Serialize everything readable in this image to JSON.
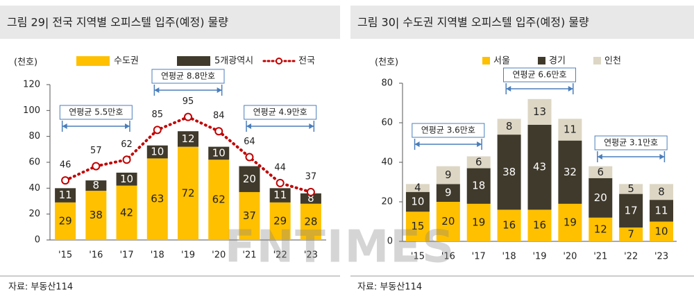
{
  "chart_data": [
    {
      "type": "bar",
      "stacked": true,
      "title": "그림 29| 전국 지역별 오피스텔 입주(예정) 물량",
      "y_label": "(천호)",
      "categories": [
        "'15",
        "'16",
        "'17",
        "'18",
        "'19",
        "'20",
        "'21",
        "'22",
        "'23"
      ],
      "series": [
        {
          "name": "수도권",
          "color": "#ffc000",
          "values": [
            29,
            38,
            42,
            63,
            72,
            62,
            37,
            29,
            28
          ]
        },
        {
          "name": "5개광역시",
          "color": "#403a2c",
          "values": [
            11,
            8,
            10,
            10,
            12,
            10,
            20,
            11,
            8
          ]
        },
        {
          "name": "전국",
          "type": "line",
          "color": "#c00000",
          "values": [
            46,
            57,
            62,
            85,
            95,
            84,
            64,
            44,
            37
          ]
        }
      ],
      "annotations": [
        "연평균 5.5만호",
        "연평균 8.8만호",
        "연평균 4.9만호"
      ],
      "ylim": [
        0,
        120
      ],
      "yticks": [
        0,
        20,
        40,
        60,
        80,
        100,
        120
      ],
      "source": "자료: 부동산114"
    },
    {
      "type": "bar",
      "stacked": true,
      "title": "그림 30| 수도권 지역별 오피스텔 입주(예정) 물량",
      "y_label": "(천호)",
      "categories": [
        "'15",
        "'16",
        "'17",
        "'18",
        "'19",
        "'20",
        "'21",
        "'22",
        "'23"
      ],
      "series": [
        {
          "name": "서울",
          "color": "#ffc000",
          "values": [
            15,
            20,
            19,
            16,
            16,
            19,
            12,
            7,
            10
          ]
        },
        {
          "name": "경기",
          "color": "#403a2c",
          "values": [
            10,
            9,
            18,
            38,
            43,
            32,
            20,
            17,
            11
          ]
        },
        {
          "name": "인천",
          "color": "#ddd6c4",
          "values": [
            4,
            9,
            6,
            8,
            13,
            11,
            6,
            5,
            8
          ]
        }
      ],
      "annotations": [
        "연평균 3.6만호",
        "연평균 6.6만호",
        "연평균 3.1만호"
      ],
      "ylim": [
        0,
        80
      ],
      "yticks": [
        0,
        20,
        40,
        60,
        80
      ],
      "source": "자료: 부동산114",
      "watermark": "FNTIMES"
    }
  ]
}
